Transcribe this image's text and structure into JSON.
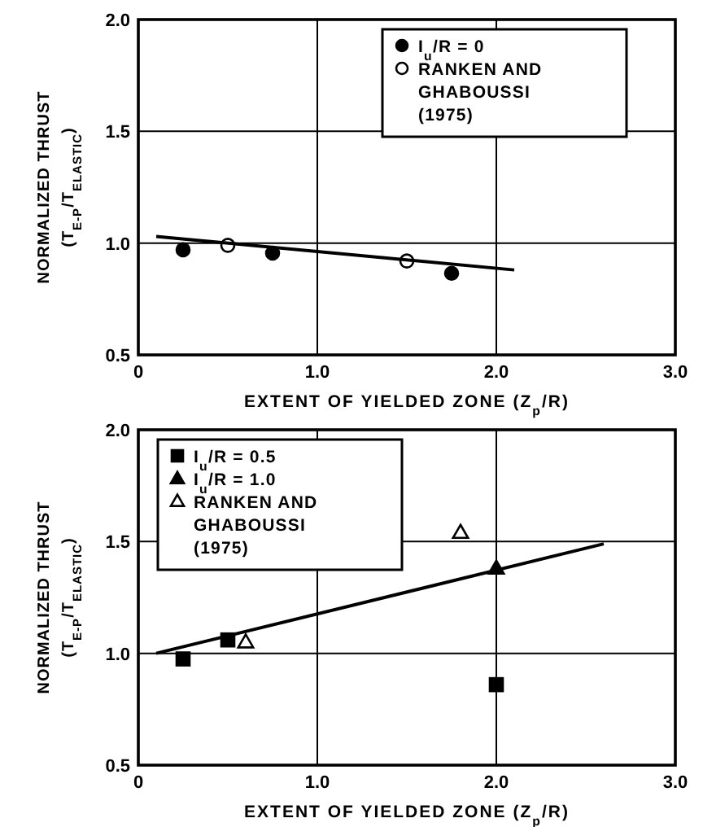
{
  "chart_data": [
    {
      "type": "scatter",
      "xlabel": "EXTENT OF YIELDED ZONE (Z$_{p}$/R)",
      "ylabel": "NORMALIZED THRUST (T$_{E-P}$/T$_{ELASTIC}$)",
      "xlim": [
        0,
        3
      ],
      "ylim": [
        0.5,
        2
      ],
      "xticks": [
        0,
        {
          "value": 1,
          "label": "1.0"
        },
        {
          "value": 2,
          "label": "2.0"
        },
        {
          "value": 3,
          "label": "3.0"
        }
      ],
      "yticks": [
        {
          "value": 0.5,
          "label": "0.5"
        },
        {
          "value": 1,
          "label": "1.0"
        },
        {
          "value": 1.5,
          "label": "1.5"
        },
        {
          "value": 2,
          "label": "2.0"
        }
      ],
      "grid": true,
      "legend": "top right",
      "series": [
        {
          "name": "I$_{u}$/R = 0",
          "color": "#000000",
          "marker": "circle",
          "x": [
            0.25,
            0.75,
            1.75
          ],
          "values": [
            0.97,
            0.955,
            0.865
          ]
        },
        {
          "name": "RANKEN AND GHABOUSSI (1975)",
          "color": "#ffffff",
          "marker": "circle",
          "x": [
            0.5,
            1.5
          ],
          "values": [
            0.99,
            0.92
          ]
        },
        {
          "type": "line",
          "color": "#000000",
          "marker": "none",
          "x": [
            0.1,
            2.1
          ],
          "values": [
            1.03,
            0.88
          ]
        }
      ]
    },
    {
      "type": "scatter",
      "xlabel": "EXTENT OF YIELDED ZONE (Z$_{p}$/R)",
      "ylabel": "NORMALIZED THRUST (T$_{E-P}$/T$_{ELASTIC}$)",
      "xlim": [
        0,
        3
      ],
      "ylim": [
        0.5,
        2
      ],
      "xticks": [
        0,
        {
          "value": 1,
          "label": "1.0"
        },
        {
          "value": 2,
          "label": "2.0"
        },
        {
          "value": 3,
          "label": "3.0"
        }
      ],
      "yticks": [
        {
          "value": 0.5,
          "label": "0.5"
        },
        {
          "value": 1,
          "label": "1.0"
        },
        {
          "value": 1.5,
          "label": "1.5"
        },
        {
          "value": 2,
          "label": "2.0"
        }
      ],
      "grid": true,
      "legend": "top left",
      "series": [
        {
          "name": "I$_{u}$/R = 0.5",
          "color": "#000000",
          "marker": "square",
          "x": [
            0.25,
            0.5,
            2.0
          ],
          "values": [
            0.975,
            1.06,
            0.86
          ]
        },
        {
          "name": "I$_{u}$/R = 1.0",
          "color": "#000000",
          "marker": "triangle",
          "x": [
            2.0
          ],
          "values": [
            1.38
          ]
        },
        {
          "name": "RANKEN AND GHABOUSSI (1975)",
          "color": "#ffffff",
          "marker": "triangle",
          "x": [
            0.6,
            1.8
          ],
          "values": [
            1.05,
            1.54
          ]
        },
        {
          "type": "line",
          "color": "#000000",
          "marker": "none",
          "x": [
            0.1,
            2.6
          ],
          "values": [
            1.0,
            1.49
          ]
        }
      ]
    }
  ]
}
